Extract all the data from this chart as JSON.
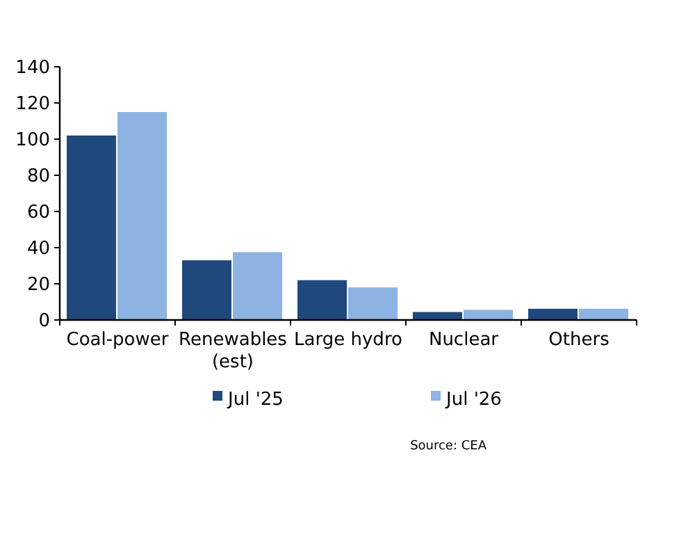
{
  "chart_data": {
    "type": "bar",
    "categories": [
      "Coal-power",
      "Renewables (est)",
      "Large hydro",
      "Nuclear",
      "Others"
    ],
    "series": [
      {
        "name": "Jul '25",
        "color": "#1f497d",
        "values": [
          102,
          33,
          22,
          4.4,
          6.2
        ]
      },
      {
        "name": "Jul '26",
        "color": "#8db3e2",
        "values": [
          115,
          37.5,
          18,
          5.6,
          6.2
        ]
      }
    ],
    "ylim": [
      0,
      140
    ],
    "yticks": [
      0,
      20,
      40,
      60,
      80,
      100,
      120,
      140
    ],
    "grid": false,
    "legend": "bottom",
    "annotations": [
      "Source: CEA"
    ]
  }
}
